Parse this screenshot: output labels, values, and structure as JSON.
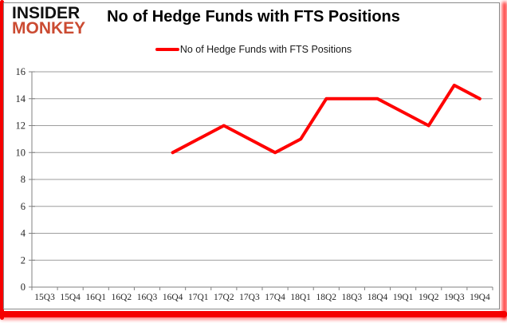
{
  "branding": {
    "logo_line1": "INSIDER",
    "logo_line2": "MONKEY",
    "logo_color_primary": "#111111",
    "logo_color_secondary": "#cb4b32"
  },
  "header": {
    "title": "No of Hedge Funds with FTS Positions"
  },
  "legend": {
    "label": "No of Hedge Funds with FTS Positions",
    "marker_color": "#ff0000"
  },
  "chart_data": {
    "type": "line",
    "title": "No of Hedge Funds with FTS Positions",
    "categories": [
      "15Q3",
      "15Q4",
      "16Q1",
      "16Q2",
      "16Q3",
      "16Q4",
      "17Q1",
      "17Q2",
      "17Q3",
      "17Q4",
      "18Q1",
      "18Q2",
      "18Q3",
      "18Q4",
      "19Q1",
      "19Q2",
      "19Q3",
      "19Q4"
    ],
    "series": [
      {
        "name": "No of Hedge Funds with FTS Positions",
        "color": "#ff0000",
        "values": [
          null,
          null,
          null,
          null,
          null,
          10,
          11,
          12,
          11,
          10,
          11,
          14,
          14,
          14,
          13,
          12,
          15,
          14
        ]
      }
    ],
    "ylim": [
      0,
      16
    ],
    "yticks": [
      0,
      2,
      4,
      6,
      8,
      10,
      12,
      14,
      16
    ],
    "grid": true,
    "legend_position": "top-center",
    "axis_color": "#808080",
    "grid_color": "#9e9e9e",
    "tick_label_color": "#262626"
  }
}
